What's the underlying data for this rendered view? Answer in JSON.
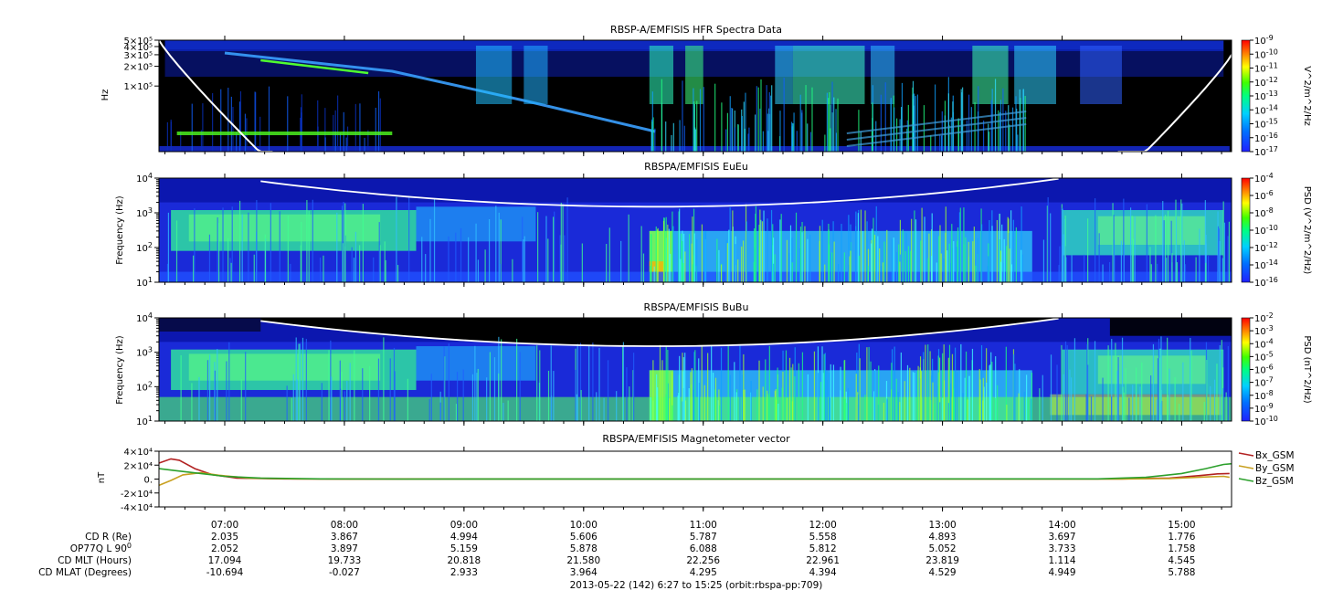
{
  "figure": {
    "footer": "2013-05-22 (142) 6:27 to 15:25 (orbit:rbspa-pp:709)"
  },
  "time_axis": {
    "start_hour": 6.45,
    "end_hour": 15.4167,
    "ticks": [
      "07:00",
      "08:00",
      "09:00",
      "10:00",
      "11:00",
      "12:00",
      "13:00",
      "14:00",
      "15:00"
    ],
    "tick_hours": [
      7,
      8,
      9,
      10,
      11,
      12,
      13,
      14,
      15
    ]
  },
  "ephemeris": {
    "rows": [
      {
        "label": "CD R (Re)",
        "values": [
          "2.035",
          "3.867",
          "4.994",
          "5.606",
          "5.787",
          "5.558",
          "4.893",
          "3.697",
          "1.776"
        ]
      },
      {
        "label": "OP77Q L 90",
        "sup": "0",
        "values": [
          "2.052",
          "3.897",
          "5.159",
          "5.878",
          "6.088",
          "5.812",
          "5.052",
          "3.733",
          "1.758"
        ]
      },
      {
        "label": "CD MLT (Hours)",
        "values": [
          "17.094",
          "19.733",
          "20.818",
          "21.580",
          "22.256",
          "22.961",
          "23.819",
          "1.114",
          "4.545"
        ]
      },
      {
        "label": "CD MLAT (Degrees)",
        "values": [
          "-10.694",
          "-0.027",
          "2.933",
          "3.964",
          "4.295",
          "4.394",
          "4.529",
          "4.949",
          "5.788"
        ]
      }
    ]
  },
  "chart_data": [
    {
      "type": "heatmap",
      "title": "RBSP-A/EMFISIS  HFR Spectra Data",
      "ylabel": "Hz",
      "ytick_labels": [
        "5×10⁵",
        "4×10⁵",
        "3×10⁵",
        "2×10⁵",
        "1×10⁵"
      ],
      "ytick_values": [
        500000,
        400000,
        300000,
        200000,
        100000
      ],
      "ylim": [
        10000,
        500000
      ],
      "yscale": "log",
      "colorbar": {
        "label": "V^2/m^2/Hz",
        "tick_exponents": [
          -9,
          -10,
          -11,
          -12,
          -13,
          -14,
          -15,
          -16,
          -17
        ],
        "range": [
          "1e-17",
          "1e-9"
        ]
      },
      "overlay": "white plasma frequency trace, highest near 06:27 and 15:25"
    },
    {
      "type": "heatmap",
      "title": "RBSPA/EMFISIS  EuEu",
      "ylabel": "Frequency (Hz)",
      "ytick_exponents": [
        4,
        3,
        2,
        1
      ],
      "ylim": [
        10,
        10000
      ],
      "yscale": "log",
      "colorbar": {
        "label": "PSD (V^2/m^2/Hz)",
        "tick_exponents": [
          -4,
          -6,
          -8,
          -10,
          -12,
          -14,
          -16
        ],
        "range": [
          "1e-16",
          "1e-4"
        ]
      },
      "overlay": "white electron cyclotron trace, minimum about 1.5×10³ Hz near 10:40"
    },
    {
      "type": "heatmap",
      "title": "RBSPA/EMFISIS  BuBu",
      "ylabel": "Frequency (Hz)",
      "ytick_exponents": [
        4,
        3,
        2,
        1
      ],
      "ylim": [
        10,
        10000
      ],
      "yscale": "log",
      "colorbar": {
        "label": "PSD (nT^2/Hz)",
        "tick_exponents": [
          -2,
          -3,
          -4,
          -5,
          -6,
          -7,
          -8,
          -9,
          -10
        ],
        "range": [
          "1e-10",
          "1e-2"
        ]
      },
      "overlay": "white electron cyclotron trace, minimum about 1.5×10³ Hz near 10:40"
    },
    {
      "type": "line",
      "title": "RBSPA/EMFISIS  Magnetometer vector",
      "ylabel": "nT",
      "ytick_labels": [
        "4×10⁴",
        "2×10⁴",
        "0.",
        "-2×10⁴",
        "-4×10⁴"
      ],
      "ytick_values": [
        40000,
        20000,
        0,
        -20000,
        -40000
      ],
      "ylim": [
        -40000,
        40000
      ],
      "series": [
        {
          "name": "Bx_GSM",
          "color": "#b22222",
          "points": [
            [
              6.45,
              23000
            ],
            [
              6.55,
              29000
            ],
            [
              6.62,
              27000
            ],
            [
              6.75,
              15000
            ],
            [
              6.9,
              6000
            ],
            [
              7.1,
              1500
            ],
            [
              7.5,
              300
            ],
            [
              8.0,
              100
            ],
            [
              14.5,
              200
            ],
            [
              14.9,
              1500
            ],
            [
              15.15,
              5000
            ],
            [
              15.3,
              7500
            ],
            [
              15.4,
              8000
            ]
          ]
        },
        {
          "name": "By_GSM",
          "color": "#c8a020",
          "points": [
            [
              6.45,
              -9000
            ],
            [
              6.55,
              -2000
            ],
            [
              6.65,
              6000
            ],
            [
              6.8,
              9000
            ],
            [
              6.95,
              5500
            ],
            [
              7.2,
              1500
            ],
            [
              7.6,
              200
            ],
            [
              8.0,
              50
            ],
            [
              14.5,
              100
            ],
            [
              14.9,
              800
            ],
            [
              15.2,
              3000
            ],
            [
              15.35,
              4000
            ],
            [
              15.4,
              2500
            ]
          ]
        },
        {
          "name": "Bz_GSM",
          "color": "#2ca02c",
          "points": [
            [
              6.45,
              15000
            ],
            [
              6.6,
              12000
            ],
            [
              6.8,
              8000
            ],
            [
              7.0,
              4000
            ],
            [
              7.3,
              1500
            ],
            [
              7.8,
              300
            ],
            [
              8.5,
              50
            ],
            [
              14.3,
              200
            ],
            [
              14.7,
              2500
            ],
            [
              15.0,
              8000
            ],
            [
              15.2,
              15000
            ],
            [
              15.35,
              21000
            ],
            [
              15.42,
              22000
            ]
          ]
        }
      ]
    }
  ]
}
